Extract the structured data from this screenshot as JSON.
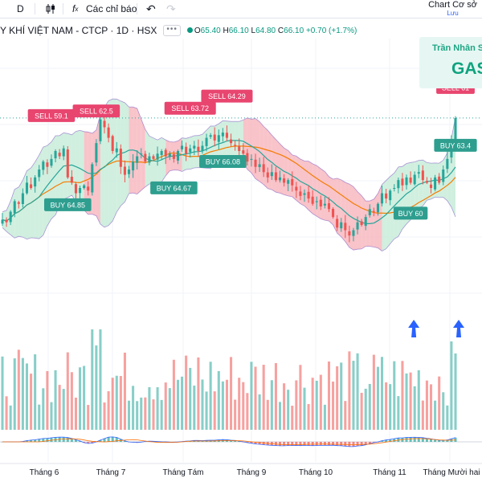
{
  "toolbar": {
    "interval": "D",
    "indicators_label": "Các chỉ báo",
    "layout_title": "Chart Cơ sở",
    "layout_save": "Lưu"
  },
  "legend": {
    "symbol_title": "Y KHÍ VIỆT NAM - CTCP · 1D · HSX",
    "open_label": "O",
    "open": "65.40",
    "high_label": "H",
    "high": "66.10",
    "low_label": "L",
    "low": "64.80",
    "close_label": "C",
    "close": "66.10",
    "change": "+0.70 (+1.7%)"
  },
  "watermark": {
    "author": "Trần Nhân S",
    "ticker": "GAS"
  },
  "colors": {
    "up": "#26a69a",
    "down": "#ef5350",
    "bb_fill_up": "#c8ecd9",
    "bb_fill_down": "#f7b9c0",
    "bb_band": "#7e57c2",
    "ma_fast": "#26a69a",
    "ma_slow": "#f57c00",
    "sell_label": "#e8456f",
    "buy_label": "#2e9e8f",
    "arrow": "#2962ff",
    "last_price_line": "#26a69a"
  },
  "chart_data": {
    "type": "candlestick",
    "symbol": "GAS",
    "timeframe": "1D",
    "x_tick_labels": [
      "Tháng 6",
      "Tháng 7",
      "Tháng Tám",
      "Tháng 9",
      "Tháng 10",
      "Tháng 11",
      "Tháng Mười hai"
    ],
    "ylim": [
      51,
      72
    ],
    "series_close_approx": [
      58.4,
      58.2,
      59.0,
      59.8,
      59.6,
      60.4,
      61.2,
      60.8,
      61.6,
      62.2,
      62.8,
      62.4,
      63.0,
      63.6,
      63.2,
      63.8,
      61.6,
      61.2,
      60.4,
      60.8,
      61.0,
      60.6,
      62.6,
      64.2,
      66.0,
      65.4,
      64.6,
      63.6,
      63.8,
      62.4,
      61.8,
      62.2,
      62.8,
      63.2,
      63.4,
      62.8,
      63.2,
      63.0,
      63.4,
      63.6,
      63.2,
      63.4,
      63.0,
      63.6,
      64.0,
      63.4,
      63.8,
      64.0,
      63.6,
      64.0,
      64.6,
      64.8,
      64.4,
      64.8,
      65.0,
      64.6,
      64.2,
      64.0,
      63.6,
      63.4,
      62.8,
      63.0,
      62.4,
      62.6,
      62.0,
      61.6,
      62.0,
      61.4,
      61.6,
      61.2,
      61.4,
      61.0,
      60.6,
      60.2,
      60.4,
      60.0,
      59.6,
      59.8,
      59.4,
      59.6,
      59.2,
      58.6,
      57.8,
      58.2,
      57.6,
      57.2,
      57.6,
      58.2,
      58.0,
      58.6,
      59.2,
      59.0,
      59.6,
      60.4,
      60.0,
      60.6,
      60.8,
      61.4,
      61.0,
      61.6,
      61.2,
      61.8,
      62.0,
      61.4,
      61.2,
      60.8,
      61.6,
      61.2,
      62.2,
      63.0,
      64.4,
      66.1
    ],
    "signals": [
      {
        "label": "SELL 59.1"
      },
      {
        "label": "BUY 64.85"
      },
      {
        "label": "SELL 62.5"
      },
      {
        "label": "SELL 63.72"
      },
      {
        "label": "SELL 64.29"
      },
      {
        "label": "BUY 64.67"
      },
      {
        "label": "BUY 66.08"
      },
      {
        "label": "BUY 60"
      },
      {
        "label": "SELL 61"
      },
      {
        "label": "BUY 63.4"
      }
    ]
  }
}
